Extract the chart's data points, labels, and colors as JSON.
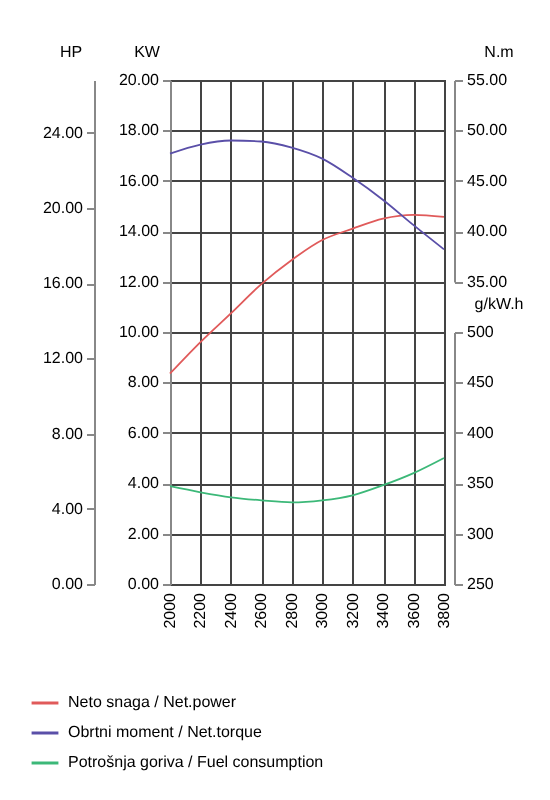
{
  "chart_data": [
    {
      "type": "line",
      "x": [
        2000,
        2200,
        2400,
        2600,
        2800,
        3000,
        3200,
        3400,
        3600,
        3800
      ],
      "series": [
        {
          "name": "Neto snaga / Net.power",
          "color": "#e05a5a",
          "axis": "y",
          "values": [
            8.35,
            9.6,
            10.74,
            11.9,
            12.86,
            13.65,
            14.1,
            14.5,
            14.65,
            14.57
          ]
        },
        {
          "name": "Obrtni moment / Net.torque",
          "color": "#5a4fa8",
          "axis": "y3",
          "values": [
            47.7,
            48.6,
            49.0,
            48.9,
            48.3,
            47.2,
            45.3,
            43.1,
            40.6,
            38.2
          ]
        }
      ],
      "xlim": [
        2000,
        3800
      ],
      "xticks": [
        2000,
        2200,
        2400,
        2600,
        2800,
        3000,
        3200,
        3400,
        3600,
        3800
      ],
      "ylabel": "KW",
      "ylim": [
        0,
        20
      ],
      "yticks": [
        {
          "value": 0,
          "label": "0.00"
        },
        {
          "value": 2,
          "label": "2.00"
        },
        {
          "value": 4,
          "label": "4.00"
        },
        {
          "value": 6,
          "label": "6.00"
        },
        {
          "value": 8,
          "label": "8.00"
        },
        {
          "value": 10,
          "label": "10.00"
        },
        {
          "value": 12,
          "label": "12.00"
        },
        {
          "value": 14,
          "label": "14.00"
        },
        {
          "value": 16,
          "label": "16.00"
        },
        {
          "value": 18,
          "label": "18.00"
        },
        {
          "value": 20,
          "label": "20.00"
        }
      ],
      "y2label": "HP",
      "y2lim": [
        0,
        26.8
      ],
      "y2ticks": [
        {
          "value": 0,
          "label": "0.00"
        },
        {
          "value": 4,
          "label": "4.00"
        },
        {
          "value": 8,
          "label": "8.00"
        },
        {
          "value": 12,
          "label": "12.00"
        },
        {
          "value": 16,
          "label": "16.00"
        },
        {
          "value": 20,
          "label": "20.00"
        },
        {
          "value": 24,
          "label": "24.00"
        }
      ],
      "y3label": "N.m",
      "y3lim": [
        35,
        55
      ],
      "y3ticks": [
        {
          "value": 35,
          "label": "35.00"
        },
        {
          "value": 40,
          "label": "40.00"
        },
        {
          "value": 45,
          "label": "45.00"
        },
        {
          "value": 50,
          "label": "50.00"
        },
        {
          "value": 55,
          "label": "55.00"
        }
      ],
      "grid": true,
      "legend": "bottom",
      "marker": "none",
      "line_style": "solid"
    },
    {
      "type": "line",
      "x": [
        2000,
        2200,
        2400,
        2600,
        2800,
        3000,
        3200,
        3400,
        3600,
        3800
      ],
      "series": [
        {
          "name": "Potrošnja goriva / Fuel consumption",
          "color": "#3cb878",
          "values": [
            347,
            341,
            336,
            333,
            331,
            333,
            338,
            348,
            360,
            375
          ]
        }
      ],
      "xlim": [
        2000,
        3800
      ],
      "xticks": [
        2000,
        2200,
        2400,
        2600,
        2800,
        3000,
        3200,
        3400,
        3600,
        3800
      ],
      "ylabel": "g/kW.h",
      "ylim": [
        250,
        500
      ],
      "yticks": [
        250,
        300,
        350,
        400,
        450,
        500
      ],
      "tick_labels": "y",
      "legend": "bottom",
      "marker": "none",
      "line_style": "solid"
    }
  ]
}
